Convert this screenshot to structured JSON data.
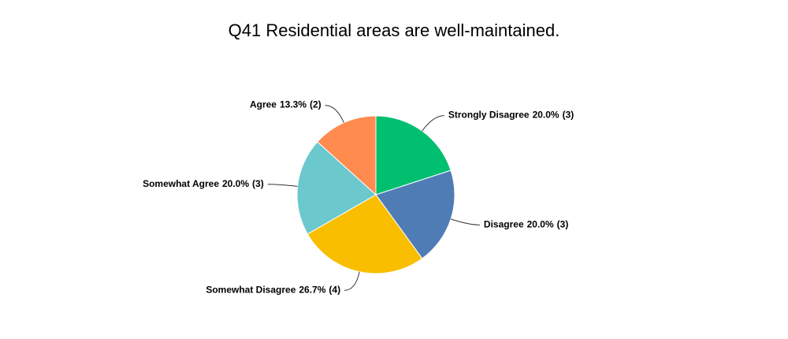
{
  "chart_data": {
    "type": "pie",
    "title": "Q41 Residential areas are well-maintained.",
    "categories": [
      "Strongly Disagree",
      "Disagree",
      "Somewhat Disagree",
      "Somewhat Agree",
      "Agree"
    ],
    "values": [
      20.0,
      20.0,
      26.7,
      20.0,
      13.3
    ],
    "value_labels": [
      "20.0%",
      "20.0%",
      "26.7%",
      "20.0%",
      "13.3%"
    ],
    "counts": [
      3,
      3,
      4,
      3,
      2
    ],
    "count_labels": [
      "(3)",
      "(3)",
      "(4)",
      "(3)",
      "(2)"
    ],
    "colors": [
      "#00bf6f",
      "#507cb6",
      "#f9be00",
      "#6bc8cd",
      "#ff8b4f"
    ]
  }
}
